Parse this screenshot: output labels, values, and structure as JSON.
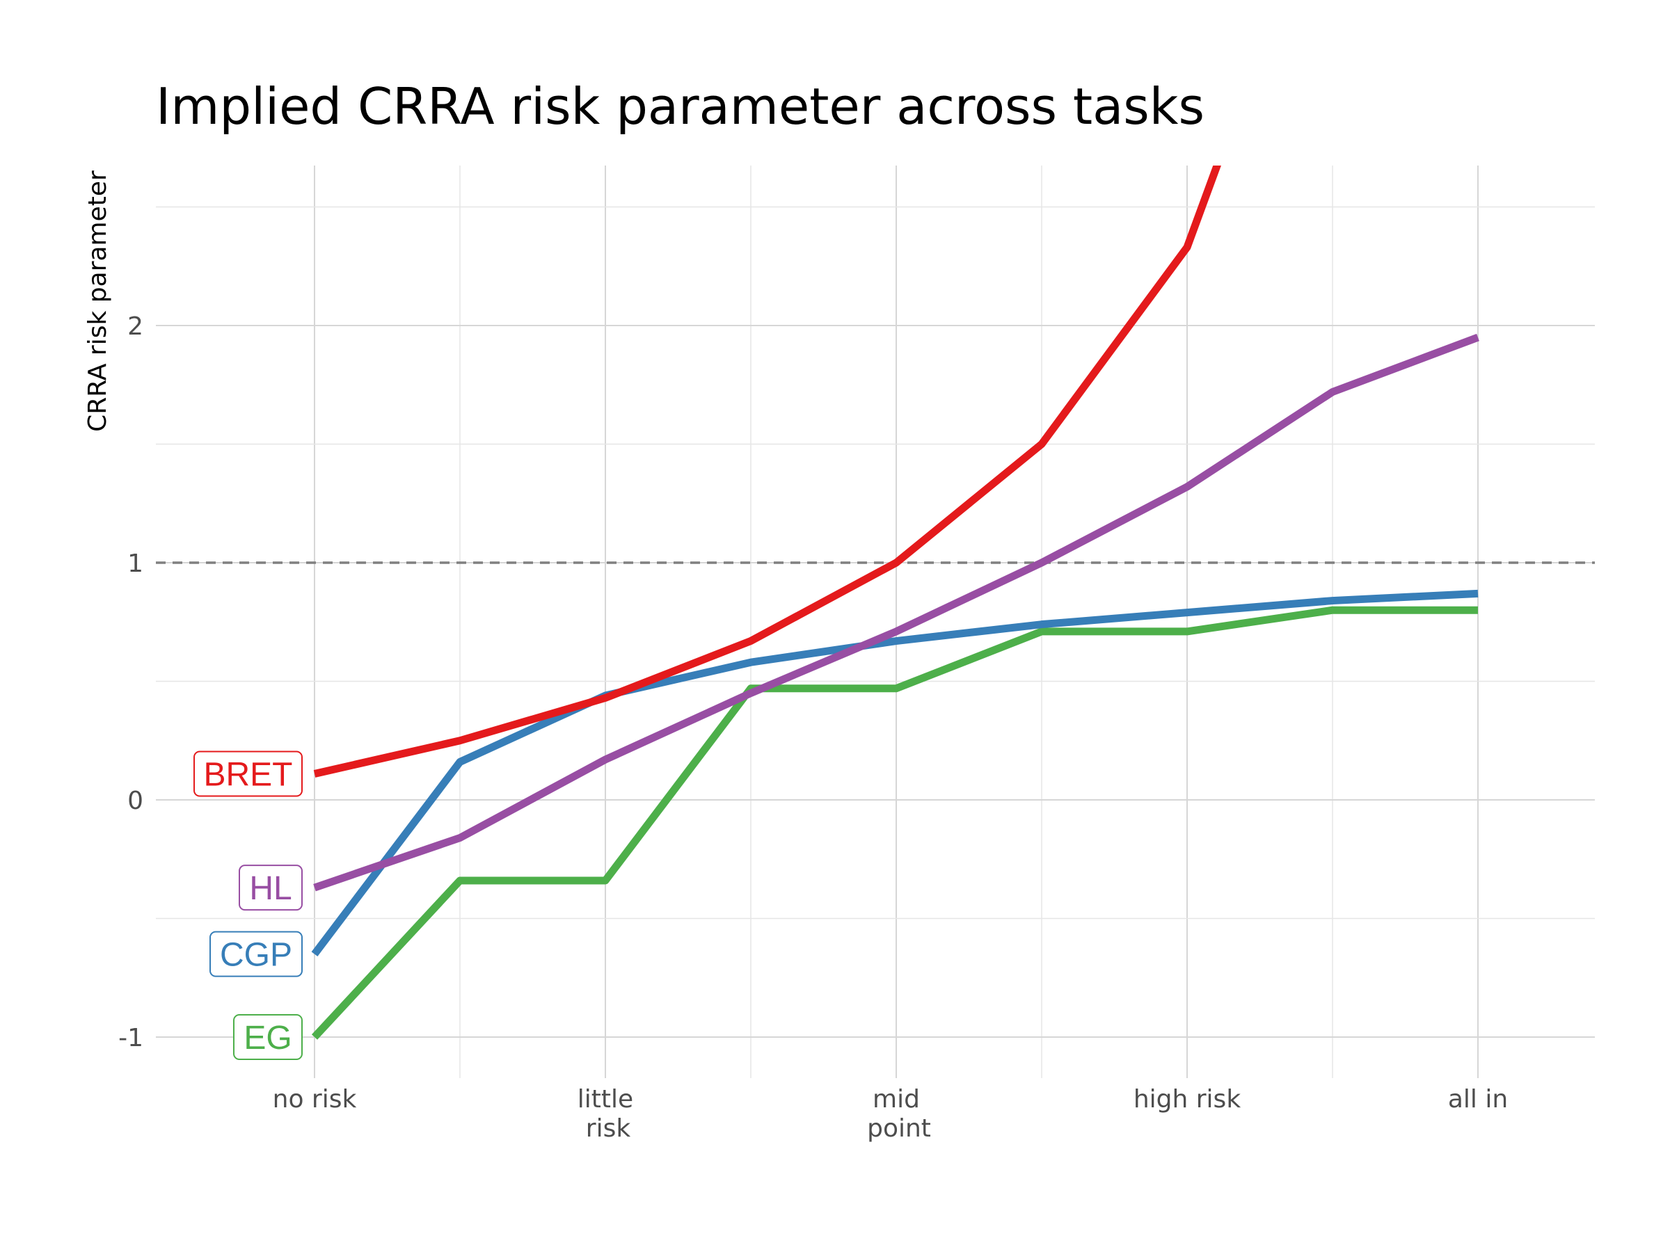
{
  "chart_data": {
    "type": "line",
    "title": "Implied CRRA risk parameter across tasks",
    "xlabel": "",
    "ylabel": "CRRA risk parameter",
    "x_ticks": [
      {
        "lines": [
          "no risk"
        ],
        "pos": 1
      },
      {
        "lines": [
          "little",
          "risk"
        ],
        "pos": 3
      },
      {
        "lines": [
          "mid",
          "point"
        ],
        "pos": 5
      },
      {
        "lines": [
          "high risk"
        ],
        "pos": 7
      },
      {
        "lines": [
          "all in"
        ],
        "pos": 9
      }
    ],
    "y_ticks": [
      "2",
      "1",
      "0",
      "-1"
    ],
    "y_tick_values": [
      2,
      1,
      0,
      -1
    ],
    "ylim": [
      -1.18,
      2.7
    ],
    "xlim": [
      1,
      9
    ],
    "grid": true,
    "reference_line": {
      "y": 1,
      "style": "dashed",
      "color": "#808080"
    },
    "series": [
      {
        "name": "BRET",
        "color": "#e41a1c",
        "x": [
          1,
          2,
          3,
          4,
          5,
          6,
          7,
          8
        ],
        "values": [
          0.11,
          0.25,
          0.43,
          0.67,
          1.0,
          1.5,
          2.33,
          4.0
        ]
      },
      {
        "name": "HL",
        "color": "#984ea3",
        "x": [
          1,
          2,
          3,
          4,
          5,
          6,
          7,
          8,
          9
        ],
        "values": [
          -0.37,
          -0.16,
          0.17,
          0.45,
          0.71,
          1.0,
          1.32,
          1.72,
          1.95
        ]
      },
      {
        "name": "CGP",
        "color": "#377eb8",
        "x": [
          1,
          2,
          3,
          4,
          5,
          6,
          7,
          8,
          9
        ],
        "values": [
          -0.65,
          0.16,
          0.44,
          0.58,
          0.67,
          0.74,
          0.79,
          0.84,
          0.87
        ]
      },
      {
        "name": "EG",
        "color": "#4daf4a",
        "x": [
          1,
          2,
          3,
          4,
          5,
          6,
          7,
          8,
          9
        ],
        "values": [
          -1.0,
          -0.34,
          -0.34,
          0.47,
          0.47,
          0.71,
          0.71,
          0.8,
          0.8
        ]
      }
    ]
  }
}
